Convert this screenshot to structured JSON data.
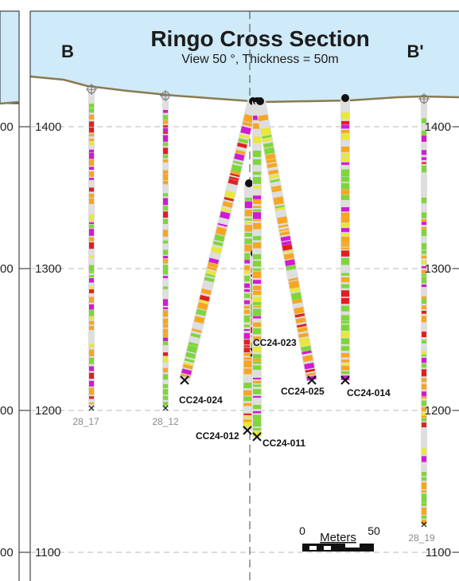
{
  "title": "Ringo Cross Section",
  "subtitle": "View 50 °, Thickness = 50m",
  "section_start_label": "B",
  "section_end_label": "B'",
  "elevation_axis": {
    "ticks": [
      1400,
      1300,
      1200,
      1100
    ],
    "left_tick_suffixes": [
      "00",
      "00",
      "00",
      "00"
    ],
    "range": [
      1080,
      1430
    ]
  },
  "scale_bar": {
    "label": "Meters",
    "start_label": "0",
    "end_label": "50"
  },
  "drill_holes": [
    {
      "id": "28_17",
      "label": "28_17",
      "label_style": "historic"
    },
    {
      "id": "28_12",
      "label": "28_12",
      "label_style": "historic"
    },
    {
      "id": "cc24-024",
      "label": "CC24-024",
      "label_style": "current"
    },
    {
      "id": "cc24-012",
      "label": "CC24-012",
      "label_style": "current"
    },
    {
      "id": "cc24-023",
      "label": "CC24-023",
      "label_style": "current"
    },
    {
      "id": "cc24-011",
      "label": "CC24-011",
      "label_style": "current"
    },
    {
      "id": "cc24-025",
      "label": "CC24-025",
      "label_style": "current"
    },
    {
      "id": "cc24-014",
      "label": "CC24-014",
      "label_style": "current"
    },
    {
      "id": "28_19",
      "label": "28_19",
      "label_style": "historic"
    }
  ],
  "colors": {
    "sky": "#cfeaf8",
    "topography": "#8a7a50",
    "grid": "#b8b8b8",
    "trace": "#dedede",
    "interval_green": "#7ed63a",
    "interval_orange": "#f6a623",
    "interval_magenta": "#d21ad2",
    "interval_red": "#e02020",
    "interval_yellow": "#e8e83a"
  }
}
